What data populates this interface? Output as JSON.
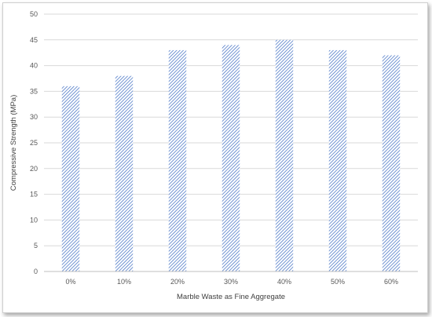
{
  "chart_data": {
    "type": "bar",
    "title": "",
    "xlabel": "Marble Waste as Fine Aggregate",
    "ylabel": "Compressive Strength (MPa)",
    "categories": [
      "0%",
      "10%",
      "20%",
      "30%",
      "40%",
      "50%",
      "60%"
    ],
    "values": [
      36,
      38,
      43,
      44,
      45,
      43,
      42
    ],
    "ylim": [
      0,
      50
    ],
    "yticks": [
      0,
      5,
      10,
      15,
      20,
      25,
      30,
      35,
      40,
      45,
      50
    ],
    "grid": true,
    "legend": "none",
    "bar_pattern": "diagonal-hatch",
    "colors": {
      "bar": "#4472C4",
      "grid": "#d9d9d9",
      "axis": "#bfbfbf",
      "text": "#595959"
    }
  }
}
